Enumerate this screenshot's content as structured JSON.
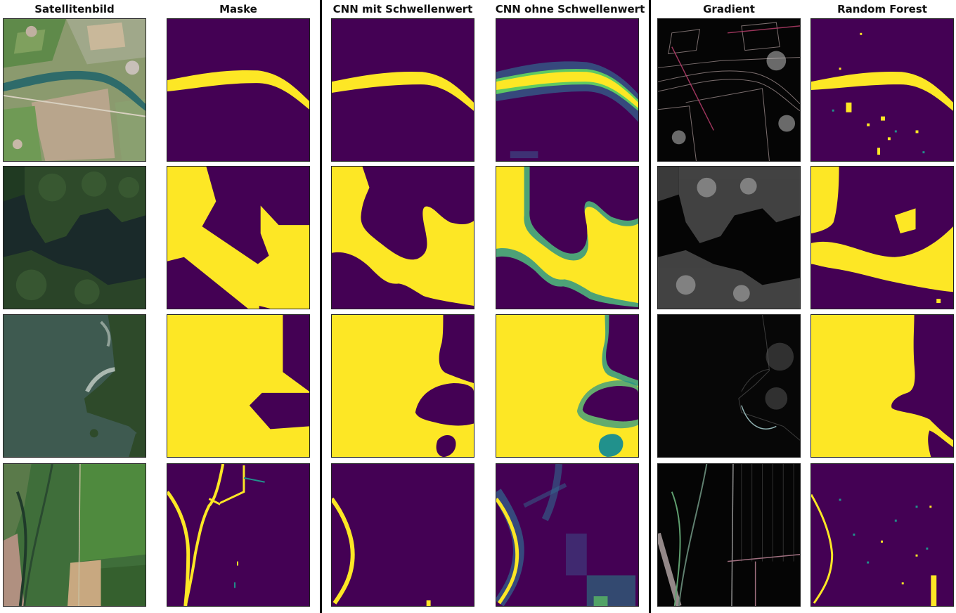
{
  "headers": {
    "satellite": "Satellitenbild",
    "mask": "Maske",
    "cnn_threshold": "CNN mit Schwellenwert",
    "cnn_no_threshold": "CNN ohne Schwellenwert",
    "gradient": "Gradient",
    "random_forest": "Random Forest"
  },
  "colors": {
    "background_class": "#440154",
    "water_class": "#fde725",
    "mid_probability": "#21918c",
    "satellite_green": "#3f6e3a",
    "satellite_water": "#2f4f48",
    "gradient_bg": "#050505"
  },
  "rows": [
    "river",
    "lake-forest",
    "lake-shore",
    "canals"
  ]
}
